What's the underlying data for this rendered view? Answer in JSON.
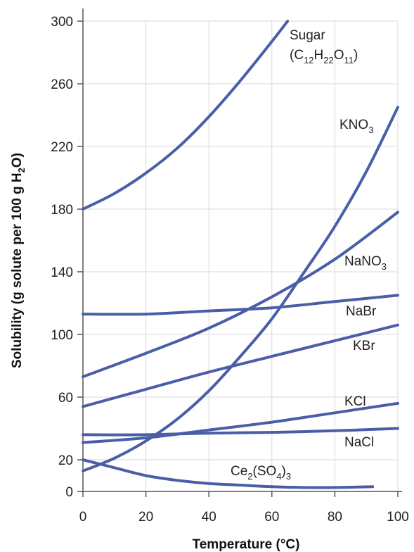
{
  "chart_data": {
    "type": "line",
    "xlabel": "Temperature (°C)",
    "ylabel": {
      "prefix": "Solubility (g solute per 100 g H",
      "sub": "2",
      "suffix": "O)"
    },
    "xlim": [
      0,
      100
    ],
    "ylim": [
      0,
      300
    ],
    "xticks": [
      0,
      20,
      40,
      60,
      80,
      100
    ],
    "yticks": [
      0,
      20,
      60,
      100,
      140,
      180,
      220,
      260,
      300
    ],
    "grid": true,
    "line_color": "#4a5ea8",
    "grid_color": "#d9d9d9",
    "series": [
      {
        "name": "Sugar",
        "label_parts": [
          {
            "line": 1,
            "parts": [
              {
                "t": "Sugar",
                "sub": false
              }
            ]
          },
          {
            "line": 2,
            "parts": [
              {
                "t": "(C",
                "sub": false
              },
              {
                "t": "12",
                "sub": true
              },
              {
                "t": "H",
                "sub": false
              },
              {
                "t": "22",
                "sub": true
              },
              {
                "t": "O",
                "sub": false
              },
              {
                "t": "11",
                "sub": true
              },
              {
                "t": ")",
                "sub": false
              }
            ]
          }
        ],
        "x": [
          0,
          10,
          20,
          30,
          40,
          50,
          60,
          65
        ],
        "y": [
          180,
          190,
          203,
          219,
          239,
          262,
          287,
          300
        ]
      },
      {
        "name": "KNO3",
        "label_parts": [
          {
            "line": 1,
            "parts": [
              {
                "t": "KNO",
                "sub": false
              },
              {
                "t": "3",
                "sub": true
              }
            ]
          }
        ],
        "x": [
          0,
          10,
          20,
          30,
          40,
          50,
          60,
          70,
          80,
          90,
          100
        ],
        "y": [
          13,
          21,
          32,
          46,
          64,
          86,
          110,
          139,
          169,
          204,
          245
        ]
      },
      {
        "name": "NaNO3",
        "label_parts": [
          {
            "line": 1,
            "parts": [
              {
                "t": "NaNO",
                "sub": false
              },
              {
                "t": "3",
                "sub": true
              }
            ]
          }
        ],
        "x": [
          0,
          20,
          40,
          60,
          80,
          100
        ],
        "y": [
          73,
          88,
          104,
          124,
          148,
          178
        ]
      },
      {
        "name": "NaBr",
        "label_parts": [
          {
            "line": 1,
            "parts": [
              {
                "t": "NaBr",
                "sub": false
              }
            ]
          }
        ],
        "x": [
          0,
          20,
          40,
          60,
          80,
          100
        ],
        "y": [
          113,
          113,
          115,
          117,
          121,
          125
        ]
      },
      {
        "name": "KBr",
        "label_parts": [
          {
            "line": 1,
            "parts": [
              {
                "t": "KBr",
                "sub": false
              }
            ]
          }
        ],
        "x": [
          0,
          20,
          40,
          60,
          80,
          100
        ],
        "y": [
          54,
          65,
          76,
          86,
          96,
          106
        ]
      },
      {
        "name": "KCl",
        "label_parts": [
          {
            "line": 1,
            "parts": [
              {
                "t": "KCl",
                "sub": false
              }
            ]
          }
        ],
        "x": [
          0,
          20,
          40,
          60,
          80,
          100
        ],
        "y": [
          31,
          34,
          39,
          44,
          50,
          56
        ]
      },
      {
        "name": "NaCl",
        "label_parts": [
          {
            "line": 1,
            "parts": [
              {
                "t": "NaCl",
                "sub": false
              }
            ]
          }
        ],
        "x": [
          0,
          20,
          40,
          60,
          80,
          100
        ],
        "y": [
          36,
          36,
          37,
          37.5,
          38.5,
          40
        ]
      },
      {
        "name": "Ce2(SO4)3",
        "label_parts": [
          {
            "line": 1,
            "parts": [
              {
                "t": "Ce",
                "sub": false
              },
              {
                "t": "2",
                "sub": true
              },
              {
                "t": "(SO",
                "sub": false
              },
              {
                "t": "4",
                "sub": true
              },
              {
                "t": ")",
                "sub": false
              },
              {
                "t": "3",
                "sub": true
              }
            ]
          }
        ],
        "x": [
          0,
          10,
          20,
          30,
          40,
          50,
          60,
          70,
          80,
          92
        ],
        "y": [
          20,
          15,
          10,
          7,
          5,
          4,
          3,
          2.5,
          2.5,
          3
        ]
      }
    ]
  }
}
